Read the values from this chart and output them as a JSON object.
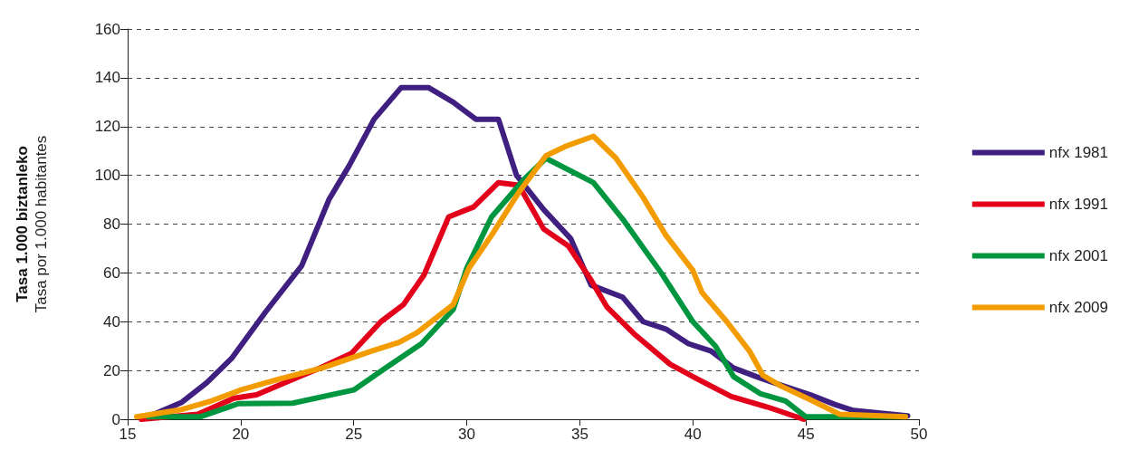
{
  "chart_data": {
    "type": "line",
    "ylabel": "Tasa 1.000 biztanleko\nTasa por 1.000 habitantes",
    "xlim": [
      15,
      50
    ],
    "xticks": [
      15,
      20,
      25,
      30,
      35,
      40,
      45,
      50
    ],
    "ylim": [
      0,
      160
    ],
    "yticks": [
      0,
      20,
      40,
      60,
      80,
      100,
      120,
      140,
      160
    ],
    "grid": "y",
    "legend": "right",
    "marker": "none",
    "line_style": "solid",
    "series": [
      {
        "name": "nfx 1981",
        "color": "#3f1f7f",
        "x": [
          15.9,
          17.4,
          18.5,
          19.6,
          21.1,
          22.7,
          23.9,
          24.8,
          25.9,
          27.1,
          28.3,
          29.4,
          30.4,
          31.4,
          32.2,
          33.4,
          34.6,
          35.5,
          36.9,
          37.8,
          38.8,
          39.8,
          40.8,
          41.8,
          42.8,
          43.9,
          45.2,
          46.3,
          47.1,
          49.5
        ],
        "values": [
          1,
          7,
          15,
          25,
          44,
          63,
          90,
          104,
          123,
          136,
          136,
          130,
          123,
          123,
          100,
          86,
          74,
          55,
          50,
          40,
          37,
          31,
          28,
          21,
          17.5,
          14,
          10,
          6,
          3.6,
          1.4
        ]
      },
      {
        "name": "nfx 1991",
        "color": "#e2001a",
        "x": [
          15.6,
          18.1,
          19.7,
          20.7,
          22.2,
          23.5,
          24.9,
          26.2,
          27.2,
          28.1,
          29.2,
          30.3,
          31.4,
          32.3,
          33.4,
          34.5,
          35.5,
          36.2,
          37.4,
          39,
          40.3,
          41.7,
          43.3,
          44.9
        ],
        "values": [
          0,
          2,
          8.6,
          10,
          16,
          21,
          27,
          40,
          47,
          59,
          83,
          87,
          97,
          96,
          78,
          71,
          57,
          46,
          35,
          22.5,
          16,
          9.3,
          5,
          0
        ]
      },
      {
        "name": "nfx 2001",
        "color": "#009640",
        "x": [
          15.9,
          18.2,
          19.9,
          22.3,
          25,
          26.4,
          28,
          29.4,
          30,
          31.1,
          32.5,
          33.5,
          35.6,
          36.9,
          38.6,
          40,
          41,
          41.8,
          43,
          44.1,
          45,
          49.4
        ],
        "values": [
          1,
          1,
          6.4,
          6.6,
          12,
          21,
          31,
          45,
          62,
          83,
          98,
          107,
          97,
          82,
          60,
          40,
          30,
          17.5,
          10.4,
          7.5,
          1,
          1
        ]
      },
      {
        "name": "nfx 2009",
        "color": "#f39c00",
        "x": [
          15.4,
          17.4,
          18.7,
          20,
          21.7,
          23.6,
          25.8,
          27,
          27.8,
          29.4,
          30.1,
          31.1,
          32.3,
          33.5,
          34.4,
          35.6,
          36.6,
          37.8,
          38.8,
          40,
          40.4,
          41.5,
          42.5,
          43.1,
          43.9,
          45.2,
          46.5,
          49.4
        ],
        "values": [
          1,
          4,
          7.5,
          12,
          16.5,
          21,
          28,
          31.5,
          35.5,
          47,
          62,
          75.5,
          93,
          108,
          112,
          116,
          107,
          91,
          75.5,
          61,
          52,
          40,
          28,
          18,
          13.6,
          8,
          2,
          1
        ]
      }
    ]
  }
}
